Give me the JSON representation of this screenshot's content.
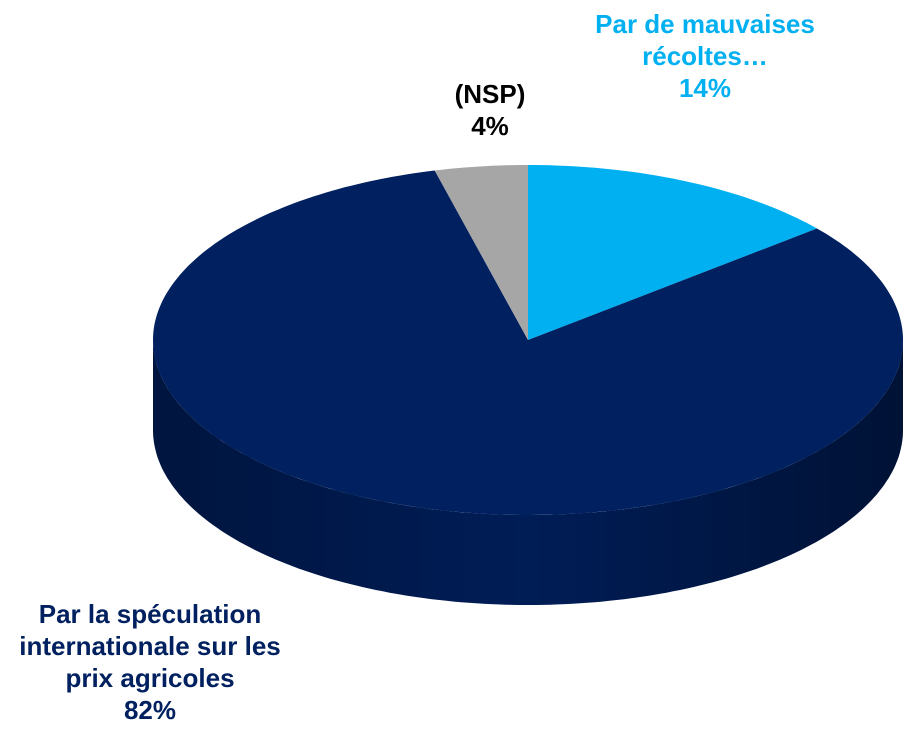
{
  "chart_data": {
    "type": "pie",
    "categories": [
      "Par de mauvaises récoltes…",
      "Par la spéculation internationale sur les prix agricoles",
      "(NSP)"
    ],
    "values": [
      14,
      82,
      4
    ],
    "value_labels": [
      "14%",
      "82%",
      "4%"
    ],
    "colors": [
      "#00b0f0",
      "#002060",
      "#a6a6a6"
    ]
  }
}
